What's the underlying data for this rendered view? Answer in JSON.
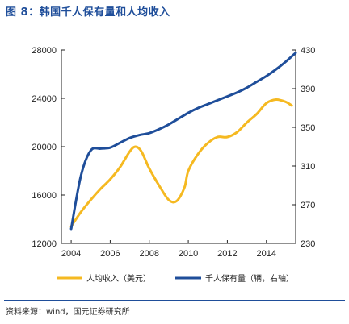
{
  "figure": {
    "title": "图 8：韩国千人保有量和人均收入",
    "source": "资料来源：wind，国元证券研究所"
  },
  "colors": {
    "title": "#1f4e9a",
    "series_income": "#f5b921",
    "series_ownership": "#1f4e9a"
  },
  "chart_data": {
    "type": "line",
    "x_ticks": [
      "2004",
      "2006",
      "2008",
      "2010",
      "2012",
      "2014"
    ],
    "xlim": [
      2003.5,
      2015.5
    ],
    "left_axis": {
      "ylim": [
        12000,
        28000
      ],
      "ticks": [
        "12000",
        "16000",
        "20000",
        "24000",
        "28000"
      ]
    },
    "right_axis": {
      "ylim": [
        230,
        430
      ],
      "ticks": [
        "230",
        "270",
        "310",
        "350",
        "390",
        "430"
      ]
    },
    "grid": false,
    "legend_position": "bottom",
    "series": [
      {
        "name": "人均收入（美元）",
        "axis": "left",
        "color": "#f5b921",
        "points": [
          [
            2004.0,
            13400
          ],
          [
            2004.5,
            14600
          ],
          [
            2005.0,
            15600
          ],
          [
            2005.5,
            16500
          ],
          [
            2006.0,
            17300
          ],
          [
            2006.5,
            18300
          ],
          [
            2007.0,
            19600
          ],
          [
            2007.3,
            20000
          ],
          [
            2007.6,
            19600
          ],
          [
            2008.0,
            18200
          ],
          [
            2008.5,
            16800
          ],
          [
            2009.0,
            15600
          ],
          [
            2009.4,
            15500
          ],
          [
            2009.8,
            16600
          ],
          [
            2010.0,
            18000
          ],
          [
            2010.5,
            19400
          ],
          [
            2011.0,
            20300
          ],
          [
            2011.5,
            20800
          ],
          [
            2012.0,
            20800
          ],
          [
            2012.5,
            21200
          ],
          [
            2013.0,
            22000
          ],
          [
            2013.5,
            22700
          ],
          [
            2014.0,
            23600
          ],
          [
            2014.5,
            23900
          ],
          [
            2015.0,
            23700
          ],
          [
            2015.3,
            23400
          ]
        ]
      },
      {
        "name": "千人保有量（辆，右轴）",
        "axis": "right",
        "color": "#1f4e9a",
        "points": [
          [
            2004.0,
            245
          ],
          [
            2004.5,
            300
          ],
          [
            2005.0,
            326
          ],
          [
            2005.5,
            328
          ],
          [
            2006.0,
            329
          ],
          [
            2006.5,
            334
          ],
          [
            2007.0,
            339
          ],
          [
            2007.5,
            342
          ],
          [
            2008.0,
            344
          ],
          [
            2008.5,
            348
          ],
          [
            2009.0,
            353
          ],
          [
            2009.5,
            359
          ],
          [
            2010.0,
            365
          ],
          [
            2010.5,
            370
          ],
          [
            2011.0,
            374
          ],
          [
            2011.5,
            378
          ],
          [
            2012.0,
            382
          ],
          [
            2012.5,
            386
          ],
          [
            2013.0,
            391
          ],
          [
            2013.5,
            397
          ],
          [
            2014.0,
            403
          ],
          [
            2014.5,
            410
          ],
          [
            2015.0,
            418
          ],
          [
            2015.5,
            427
          ]
        ]
      }
    ]
  }
}
